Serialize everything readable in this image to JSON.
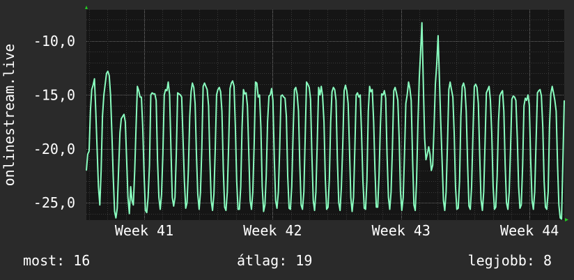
{
  "chart_data": {
    "type": "line",
    "ylabel": "onlinestream.live",
    "xlabel": "",
    "ylim": [
      -26.6,
      -7.1
    ],
    "ytick_values": [
      -10,
      -15,
      -20,
      -25
    ],
    "ytick_labels": [
      "-10,0",
      "-15,0",
      "-20,0",
      "-25,0"
    ],
    "xtick_labels": [
      "Week 41",
      "Week 42",
      "Week 43",
      "Week 44"
    ],
    "xtick_positions": [
      41,
      42,
      43,
      44
    ],
    "xlim": [
      40.55,
      44.27
    ],
    "grid": true,
    "series": [
      {
        "values": [
          -22.0,
          -20.5,
          -20.2,
          -16.5,
          -14.5,
          -14.1,
          -13.5,
          -16.5,
          -20.0,
          -23.5,
          -25.2,
          -22.0,
          -17.0,
          -15.0,
          -14.0,
          -13.0,
          -12.8,
          -13.2,
          -15.0,
          -18.5,
          -22.5,
          -25.8,
          -26.4,
          -25.5,
          -22.0,
          -18.5,
          -17.2,
          -17.0,
          -16.8,
          -17.5,
          -21.0,
          -24.5,
          -26.0,
          -23.5,
          -24.8,
          -25.2,
          -22.0,
          -18.0,
          -14.2,
          -14.6,
          -15.2,
          -15.2,
          -18.0,
          -22.5,
          -25.7,
          -25.9,
          -24.5,
          -21.5,
          -15.0,
          -14.8,
          -14.9,
          -14.9,
          -15.5,
          -21.0,
          -24.5,
          -25.6,
          -24.2,
          -20.5,
          -15.0,
          -14.5,
          -14.6,
          -13.8,
          -15.0,
          -20.0,
          -24.5,
          -25.3,
          -24.5,
          -20.5,
          -14.8,
          -14.9,
          -15.0,
          -15.2,
          -19.0,
          -23.0,
          -25.5,
          -25.0,
          -22.0,
          -17.0,
          -14.7,
          -13.9,
          -14.3,
          -15.8,
          -20.5,
          -24.2,
          -25.6,
          -24.0,
          -20.0,
          -14.2,
          -13.9,
          -14.2,
          -14.5,
          -16.0,
          -21.0,
          -24.8,
          -25.7,
          -24.2,
          -20.0,
          -15.0,
          -14.5,
          -14.3,
          -14.7,
          -16.5,
          -22.0,
          -25.4,
          -25.7,
          -24.0,
          -19.5,
          -14.4,
          -13.9,
          -13.7,
          -14.2,
          -18.0,
          -23.0,
          -25.6,
          -25.6,
          -23.5,
          -18.0,
          -14.5,
          -14.9,
          -14.8,
          -16.0,
          -20.5,
          -24.8,
          -25.6,
          -24.0,
          -19.5,
          -13.8,
          -13.9,
          -15.2,
          -15.0,
          -18.0,
          -23.5,
          -25.8,
          -25.2,
          -22.5,
          -17.5,
          -15.1,
          -15.0,
          -14.4,
          -15.5,
          -21.0,
          -24.8,
          -25.5,
          -24.0,
          -20.0,
          -15.1,
          -15.0,
          -15.2,
          -15.3,
          -17.0,
          -22.5,
          -25.5,
          -25.6,
          -23.5,
          -18.5,
          -14.5,
          -14.3,
          -14.9,
          -16.5,
          -21.5,
          -25.2,
          -25.6,
          -24.0,
          -19.0,
          -13.8,
          -14.0,
          -14.3,
          -15.4,
          -20.5,
          -24.8,
          -25.7,
          -24.0,
          -19.5,
          -14.3,
          -15.0,
          -14.2,
          -15.1,
          -17.5,
          -22.8,
          -25.6,
          -25.4,
          -22.8,
          -17.5,
          -14.7,
          -14.3,
          -14.5,
          -15.5,
          -21.0,
          -25.0,
          -25.7,
          -23.5,
          -19.5,
          -14.6,
          -14.1,
          -14.6,
          -15.8,
          -20.0,
          -24.5,
          -25.8,
          -24.5,
          -20.0,
          -15.0,
          -14.8,
          -15.2,
          -15.0,
          -18.5,
          -23.0,
          -25.5,
          -25.6,
          -23.0,
          -16.5,
          -14.2,
          -14.7,
          -14.5,
          -17.5,
          -22.0,
          -25.4,
          -25.4,
          -22.5,
          -18.0,
          -14.9,
          -15.0,
          -14.6,
          -15.3,
          -20.5,
          -24.5,
          -25.6,
          -24.0,
          -20.0,
          -14.6,
          -14.3,
          -14.8,
          -15.5,
          -19.0,
          -24.0,
          -25.7,
          -24.5,
          -20.5,
          -15.8,
          -15.0,
          -13.8,
          -14.4,
          -15.5,
          -21.0,
          -25.2,
          -25.7,
          -23.0,
          -17.5,
          -13.4,
          -11.0,
          -8.3,
          -14.0,
          -19.0,
          -21.0,
          -20.5,
          -19.8,
          -20.5,
          -22.0,
          -21.5,
          -18.0,
          -14.0,
          -12.2,
          -9.5,
          -13.5,
          -17.5,
          -21.0,
          -24.8,
          -25.7,
          -24.0,
          -19.5,
          -14.5,
          -13.8,
          -14.5,
          -15.2,
          -18.5,
          -23.5,
          -25.6,
          -25.5,
          -23.0,
          -17.0,
          -14.2,
          -13.9,
          -14.4,
          -16.5,
          -21.5,
          -25.3,
          -25.6,
          -23.5,
          -18.5,
          -14.2,
          -14.0,
          -14.3,
          -15.8,
          -20.5,
          -24.7,
          -25.7,
          -24.0,
          -19.5,
          -14.8,
          -14.5,
          -14.2,
          -15.5,
          -18.5,
          -23.5,
          -25.6,
          -25.4,
          -22.5,
          -17.5,
          -15.1,
          -14.8,
          -14.6,
          -16.5,
          -21.5,
          -25.0,
          -25.6,
          -24.0,
          -20.0,
          -15.4,
          -15.1,
          -15.2,
          -15.5,
          -19.0,
          -23.5,
          -25.5,
          -25.2,
          -21.5,
          -16.0,
          -15.3,
          -15.5,
          -15.0,
          -16.0,
          -21.0,
          -24.8,
          -25.6,
          -24.0,
          -19.5,
          -14.8,
          -14.6,
          -14.5,
          -15.1,
          -18.0,
          -23.0,
          -25.4,
          -25.6,
          -24.0,
          -18.0,
          -14.9,
          -14.2,
          -14.8,
          -15.5,
          -16.5,
          -21.5,
          -25.2,
          -26.4,
          -26.5,
          -21.0,
          -15.5
        ]
      }
    ]
  },
  "stats": {
    "current": "most: 16",
    "average": "átlag: 19",
    "best": "legjobb: 8"
  },
  "colors": {
    "background": "#2a2a2a",
    "plot_background": "#151515",
    "grid_minor": "#3b3b3b",
    "grid_major": "#6a6a6a",
    "line": "#8affc0",
    "axis_arrow": "#22cc22",
    "text": "#ffffff"
  }
}
